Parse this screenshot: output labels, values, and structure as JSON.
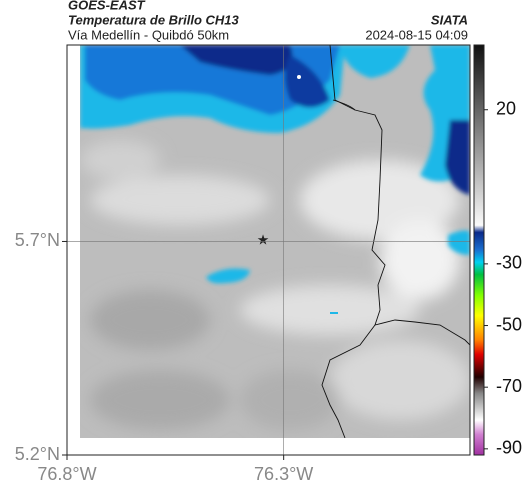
{
  "header": {
    "satellite": "GOES-EAST",
    "product": "Temperatura de Brillo CH13",
    "region": "Vía Medellín - Quibdó 50km",
    "source": "SIATA",
    "timestamp": "2024-08-15 04:09"
  },
  "map": {
    "lat_lim": [
      5.2,
      6.16
    ],
    "lon_lim": [
      -76.8,
      -75.87
    ],
    "lat_ticks": [
      {
        "value": 5.7,
        "label": "5.7°N"
      },
      {
        "value": 5.2,
        "label": "5.2°N"
      }
    ],
    "lon_ticks": [
      {
        "value": -76.8,
        "label": "76.8°W"
      },
      {
        "value": -76.3,
        "label": "76.3°W"
      }
    ],
    "colorbar": {
      "lim": [
        41,
        -92
      ],
      "ticks": [
        20,
        -30,
        -50,
        -70,
        -90
      ]
    }
  }
}
